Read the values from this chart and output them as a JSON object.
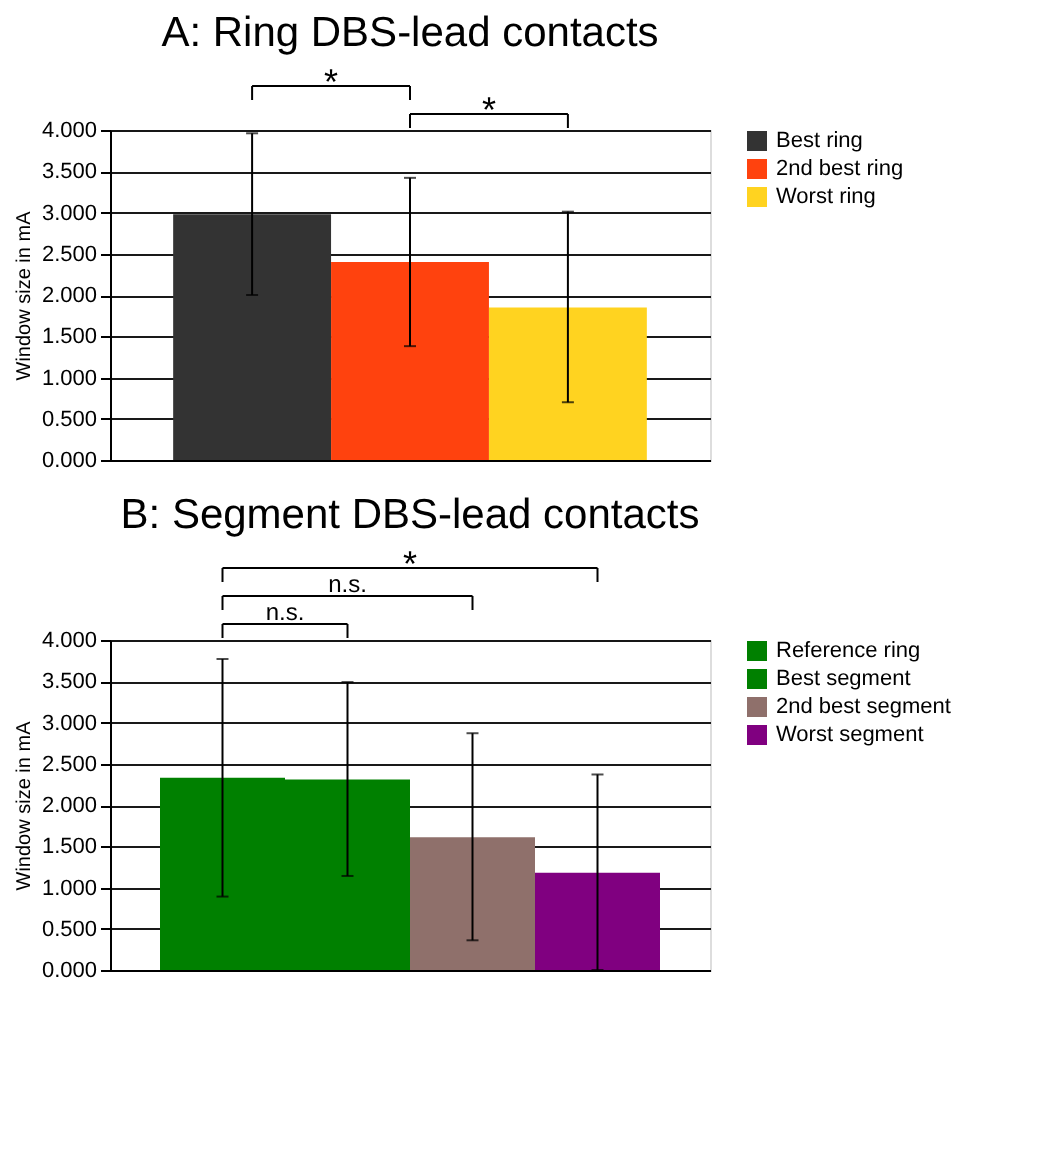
{
  "chart_data": [
    {
      "type": "bar",
      "title": "A: Ring DBS-lead contacts",
      "ylabel": "Window size in mA",
      "categories": [
        null
      ],
      "series": [
        {
          "name": "Best ring",
          "color": "#333333",
          "values": [
            2.98
          ],
          "errors": [
            [
              2.0,
              3.96
            ]
          ]
        },
        {
          "name": "2nd best ring",
          "color": "#ff420e",
          "values": [
            2.4
          ],
          "errors": [
            [
              1.38,
              3.42
            ]
          ]
        },
        {
          "name": "Worst ring",
          "color": "#ffd320",
          "values": [
            1.85
          ],
          "errors": [
            [
              0.7,
              3.01
            ]
          ]
        }
      ],
      "ylim": [
        0,
        4
      ],
      "yticks": [
        {
          "value": 0,
          "label": "0.000"
        },
        {
          "value": 0.5,
          "label": "0.500"
        },
        {
          "value": 1,
          "label": "1.000"
        },
        {
          "value": 1.5,
          "label": "1.500"
        },
        {
          "value": 2,
          "label": "2.000"
        },
        {
          "value": 2.5,
          "label": "2.500"
        },
        {
          "value": 3,
          "label": "3.000"
        },
        {
          "value": 3.5,
          "label": "3.500"
        },
        {
          "value": 4,
          "label": "4.000"
        }
      ],
      "grid": "y",
      "legend": "right",
      "tick_labels": "y",
      "annotations": [
        "*",
        "*"
      ]
    },
    {
      "type": "bar",
      "title": "B: Segment DBS-lead contacts",
      "ylabel": "Window size in mA",
      "categories": [
        null
      ],
      "series": [
        {
          "name": "Reference ring",
          "color": "#008000",
          "values": [
            2.33
          ],
          "errors": [
            [
              0.89,
              3.77
            ]
          ]
        },
        {
          "name": "Best segment",
          "color": "#008000",
          "values": [
            2.31
          ],
          "errors": [
            [
              1.14,
              3.49
            ]
          ]
        },
        {
          "name": "2nd best segment",
          "color": "#8f706b",
          "values": [
            1.61
          ],
          "errors": [
            [
              0.36,
              2.87
            ]
          ]
        },
        {
          "name": "Worst segment",
          "color": "#800080",
          "values": [
            1.18
          ],
          "errors": [
            [
              0.0,
              2.37
            ]
          ]
        }
      ],
      "ylim": [
        0,
        4
      ],
      "yticks": [
        {
          "value": 0,
          "label": "0.000"
        },
        {
          "value": 0.5,
          "label": "0.500"
        },
        {
          "value": 1,
          "label": "1.000"
        },
        {
          "value": 1.5,
          "label": "1.500"
        },
        {
          "value": 2,
          "label": "2.000"
        },
        {
          "value": 2.5,
          "label": "2.500"
        },
        {
          "value": 3,
          "label": "3.000"
        },
        {
          "value": 3.5,
          "label": "3.500"
        },
        {
          "value": 4,
          "label": "4.000"
        }
      ],
      "grid": "y",
      "legend": "right",
      "tick_labels": "y",
      "annotations": [
        "n.s.",
        "n.s.",
        "*"
      ]
    }
  ]
}
